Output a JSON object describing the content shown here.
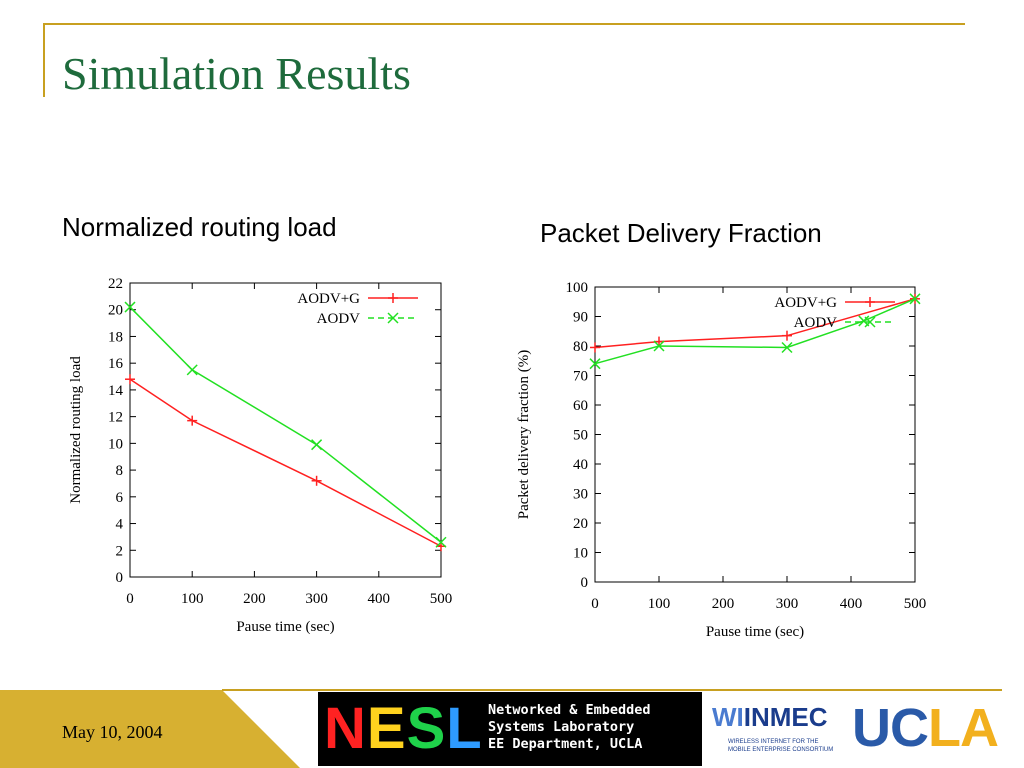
{
  "slide": {
    "title": "Simulation Results",
    "footer_date": "May 10, 2004"
  },
  "captions": {
    "left": "Normalized routing load",
    "right": "Packet Delivery Fraction"
  },
  "logos": {
    "nesl": {
      "letters": [
        "N",
        "E",
        "S",
        "L"
      ],
      "letter_colors": [
        "#ff2222",
        "#ffd21e",
        "#1fd24a",
        "#2e9bff"
      ],
      "lines": [
        "Networked & Embedded",
        "Systems Laboratory",
        "EE Department, UCLA"
      ]
    },
    "winmec": {
      "mark_a": "WI",
      "mark_b": "INMEC",
      "subtitle": "WIRELESS INTERNET FOR THE\nMOBILE ENTERPRISE CONSORTIUM"
    },
    "ucla": {
      "part1": "UC",
      "part2": "LA"
    }
  },
  "chart_data": [
    {
      "type": "line",
      "title": "",
      "xlabel": "Pause time (sec)",
      "ylabel": "Normalized routing load",
      "xlim": [
        0,
        500
      ],
      "ylim": [
        0,
        22
      ],
      "xticks": [
        0,
        100,
        200,
        300,
        400,
        500
      ],
      "yticks": [
        0,
        2,
        4,
        6,
        8,
        10,
        12,
        14,
        16,
        18,
        20,
        22
      ],
      "legend_position": "top-right",
      "grid": false,
      "series": [
        {
          "name": "AODV+G",
          "color": "#ff2020",
          "marker": "plus",
          "dash": "solid",
          "x": [
            0,
            100,
            300,
            500
          ],
          "y": [
            14.8,
            11.7,
            7.2,
            2.3
          ]
        },
        {
          "name": "AODV",
          "color": "#22e022",
          "marker": "x",
          "dash": "dashed",
          "x": [
            0,
            100,
            300,
            500
          ],
          "y": [
            20.2,
            15.5,
            9.9,
            2.6
          ]
        }
      ]
    },
    {
      "type": "line",
      "title": "",
      "xlabel": "Pause time (sec)",
      "ylabel": "Packet delivery fraction (%)",
      "xlim": [
        0,
        500
      ],
      "ylim": [
        0,
        100
      ],
      "xticks": [
        0,
        100,
        200,
        300,
        400,
        500
      ],
      "yticks": [
        0,
        10,
        20,
        30,
        40,
        50,
        60,
        70,
        80,
        90,
        100
      ],
      "legend_position": "top-right",
      "grid": false,
      "series": [
        {
          "name": "AODV+G",
          "color": "#ff2020",
          "marker": "plus",
          "dash": "solid",
          "x": [
            0,
            100,
            300,
            500
          ],
          "y": [
            79.5,
            81.5,
            83.5,
            96
          ]
        },
        {
          "name": "AODV",
          "color": "#22e022",
          "marker": "x",
          "dash": "dashed",
          "x": [
            0,
            100,
            300,
            420,
            500
          ],
          "y": [
            74,
            80,
            79.5,
            88.5,
            96
          ]
        }
      ]
    }
  ]
}
